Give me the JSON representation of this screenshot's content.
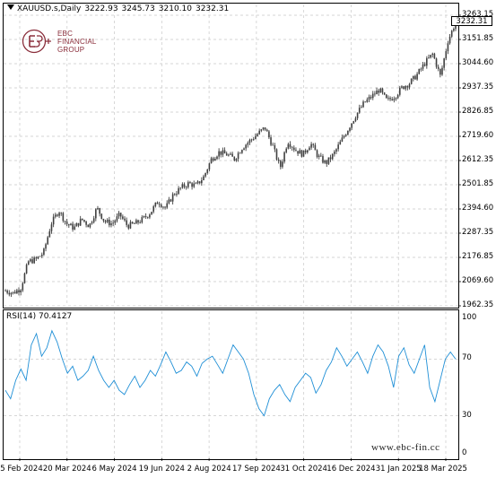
{
  "header": {
    "symbol": "XAUUSD.s,Daily",
    "open": "3222.93",
    "high": "3245.73",
    "low": "3210.10",
    "close": "3232.31"
  },
  "current_price": "3232.31",
  "logo": {
    "line1": "EBC",
    "line2": "FINANCIAL",
    "line3": "GROUP"
  },
  "rsi": {
    "label": "RSI(14)",
    "value": "70.4127"
  },
  "watermark": "www.ebc-fin.cc",
  "price_axis_labels": [
    "3263.15",
    "3151.85",
    "3044.60",
    "2937.35",
    "2826.85",
    "2719.60",
    "2612.35",
    "2501.85",
    "2394.60",
    "2287.35",
    "2176.85",
    "2069.60",
    "1962.35"
  ],
  "rsi_axis_labels": [
    "100",
    "70",
    "30",
    "0"
  ],
  "time_axis_labels": [
    "5 Feb 2024",
    "20 Mar 2024",
    "6 May 2024",
    "19 Jun 2024",
    "2 Aug 2024",
    "17 Sep 2024",
    "31 Oct 2024",
    "16 Dec 2024",
    "31 Jan 2025",
    "18 Mar 2025"
  ],
  "chart_data": [
    {
      "type": "candlestick",
      "title": "XAUUSD.s,Daily",
      "ylim": [
        1962.35,
        3263.15
      ],
      "x": [
        "5 Feb 2024",
        "20 Mar 2024",
        "6 May 2024",
        "19 Jun 2024",
        "2 Aug 2024",
        "17 Sep 2024",
        "31 Oct 2024",
        "16 Dec 2024",
        "31 Jan 2025",
        "18 Mar 2025",
        "end"
      ],
      "close_path": [
        2030,
        2020,
        2040,
        2160,
        2170,
        2200,
        2330,
        2390,
        2330,
        2310,
        2350,
        2320,
        2400,
        2340,
        2330,
        2370,
        2320,
        2330,
        2350,
        2380,
        2430,
        2400,
        2460,
        2490,
        2510,
        2500,
        2540,
        2620,
        2650,
        2640,
        2620,
        2670,
        2700,
        2730,
        2760,
        2680,
        2580,
        2700,
        2660,
        2640,
        2690,
        2630,
        2600,
        2640,
        2700,
        2760,
        2820,
        2870,
        2900,
        2930,
        2880,
        2900,
        2940,
        2960,
        3000,
        3050,
        3090,
        2990,
        3150,
        3232
      ],
      "grid": true,
      "candle_color": "#404040"
    },
    {
      "type": "line",
      "title": "RSI(14) 70.4127",
      "ylim": [
        0,
        100
      ],
      "levels": [
        30,
        70
      ],
      "values": [
        48,
        42,
        55,
        63,
        55,
        80,
        88,
        72,
        78,
        90,
        82,
        70,
        60,
        65,
        55,
        58,
        62,
        72,
        62,
        55,
        50,
        55,
        48,
        45,
        52,
        58,
        50,
        55,
        62,
        58,
        66,
        75,
        68,
        60,
        62,
        68,
        65,
        58,
        67,
        70,
        72,
        66,
        60,
        70,
        80,
        75,
        70,
        60,
        45,
        35,
        30,
        42,
        48,
        52,
        45,
        40,
        50,
        55,
        60,
        57,
        46,
        52,
        62,
        68,
        78,
        72,
        65,
        70,
        75,
        68,
        60,
        72,
        80,
        75,
        65,
        50,
        72,
        78,
        66,
        60,
        70,
        80,
        50,
        40,
        55,
        70,
        75,
        70
      ],
      "color": "#1f8fd6",
      "grid": true
    }
  ]
}
